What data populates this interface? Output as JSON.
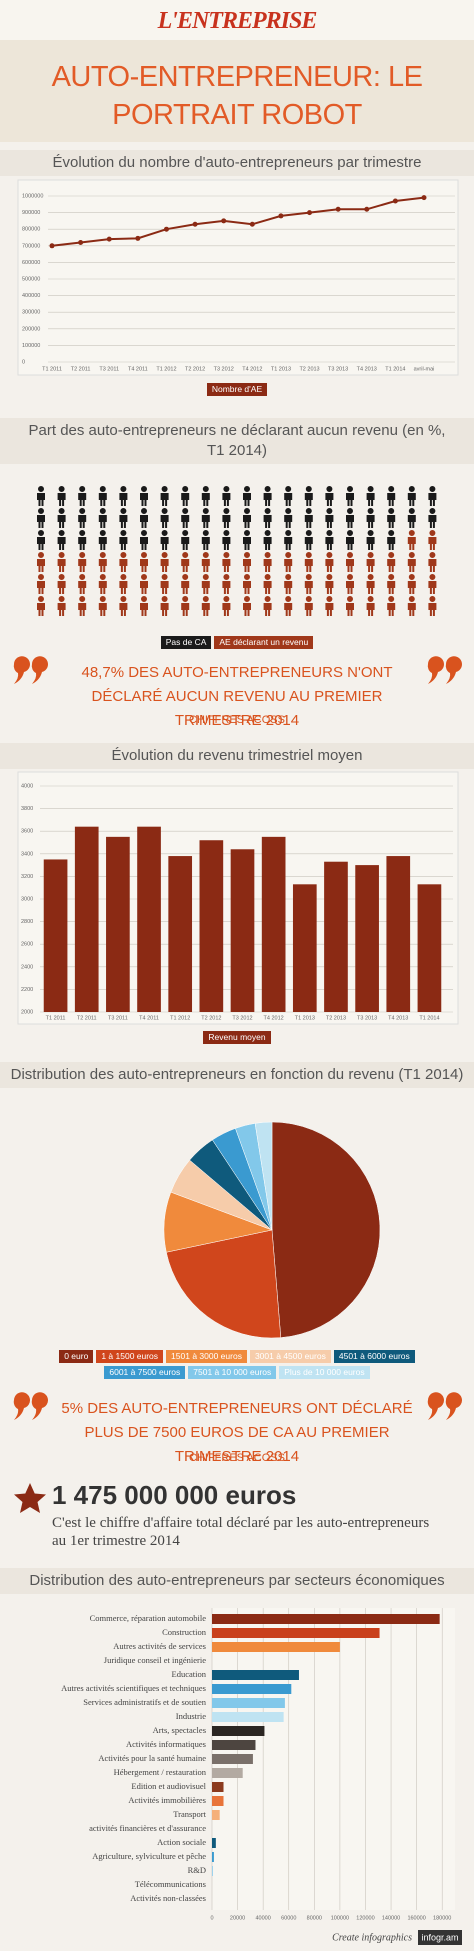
{
  "header": {
    "logo": "L'ENTREPRISE",
    "title": "AUTO-ENTREPRENEUR: LE PORTRAIT ROBOT"
  },
  "chart_data": [
    {
      "type": "line",
      "title": "Évolution du nombre d'auto-entrepreneurs par trimestre",
      "categories": [
        "T1 2011",
        "T2 2011",
        "T3 2011",
        "T4 2011",
        "T1 2012",
        "T2 2012",
        "T3 2012",
        "T4 2012",
        "T1 2013",
        "T2 2013",
        "T3 2013",
        "T4 2013",
        "T1 2014",
        "avril-mai"
      ],
      "series": [
        {
          "name": "Nombre d'AE",
          "color": "#8b2a14",
          "values": [
            700000,
            720000,
            740000,
            745000,
            800000,
            830000,
            850000,
            830000,
            880000,
            900000,
            920000,
            920000,
            970000,
            990000
          ]
        }
      ],
      "ylim": [
        0,
        1000000
      ],
      "yticks": [
        0,
        100000,
        200000,
        300000,
        400000,
        500000,
        600000,
        700000,
        800000,
        900000,
        1000000
      ],
      "grid": true
    },
    {
      "type": "pictogram",
      "title": "Part des auto-entrepreneurs ne déclarant aucun revenu (en %, T1 2014)",
      "series": [
        {
          "name": "Pas de CA",
          "color": "#1a1a1a",
          "values": [
            48.7
          ]
        },
        {
          "name": "AE déclarant un revenu",
          "color": "#a0381a",
          "values": [
            51.3
          ]
        }
      ]
    },
    {
      "type": "bar",
      "title": "Évolution du revenu trimestriel moyen",
      "categories": [
        "T1 2011",
        "T2 2011",
        "T3 2011",
        "T4 2011",
        "T1 2012",
        "T2 2012",
        "T3 2012",
        "T4 2012",
        "T1 2013",
        "T2 2013",
        "T3 2013",
        "T4 2013",
        "T1 2014"
      ],
      "series": [
        {
          "name": "Revenu moyen",
          "color": "#8b2a14",
          "values": [
            3350,
            3640,
            3550,
            3640,
            3380,
            3520,
            3440,
            3550,
            3130,
            3330,
            3300,
            3380,
            3130
          ]
        }
      ],
      "ylim": [
        2000,
        4000
      ],
      "yticks": [
        2000,
        2200,
        2400,
        2600,
        2800,
        3000,
        3200,
        3400,
        3600,
        3800,
        4000
      ],
      "grid": true
    },
    {
      "type": "pie",
      "title": "Distribution des auto-entrepreneurs en fonction du revenu (T1 2014)",
      "categories": [
        "0 euro",
        "1 à 1500 euros",
        "1501 à 3000 euros",
        "3001 à 4500 euros",
        "4501 à 6000 euros",
        "6001 à 7500 euros",
        "7501 à 10 000 euros",
        "Plus de 10 000 euros"
      ],
      "values": [
        48.7,
        23,
        9,
        5.5,
        4.5,
        3.8,
        3,
        2.5
      ],
      "colors": [
        "#8b2a14",
        "#d0461c",
        "#f08a3c",
        "#f6ccaa",
        "#0f5a7c",
        "#3a9ad0",
        "#82c8ea",
        "#bfe3f2"
      ]
    },
    {
      "type": "hbar",
      "title": "Distribution des auto-entrepreneurs par secteurs économiques",
      "categories": [
        "Commerce, réparation automobile",
        "Construction",
        "Autres activités de services",
        "Juridique conseil et ingénierie",
        "Education",
        "Autres activités scientifiques et techniques",
        "Services administratifs et de soutien",
        "Industrie",
        "Arts, spectacles",
        "Activités informatiques",
        "Activités pour la santé humaine",
        "Hébergement / restauration",
        "Edition et audiovisuel",
        "Activités immobilières",
        "Transport",
        "activités financières et d'assurance",
        "Action sociale",
        "Agriculture, sylviculture et pêche",
        "R&D",
        "Télécommunications",
        "Activités non-classées"
      ],
      "values": [
        178000,
        131000,
        100000,
        0,
        68000,
        62000,
        57000,
        56000,
        41000,
        34000,
        32000,
        24000,
        9000,
        9000,
        6000,
        0,
        3000,
        1500,
        600,
        0,
        0
      ],
      "colors": [
        "#8b2a14",
        "#c9401c",
        "#f08a3c",
        "#cccccc",
        "#0f5a7c",
        "#3a9ad0",
        "#82c8ea",
        "#bfe3f2",
        "#2b2622",
        "#4d4540",
        "#7a706a",
        "#b3aaa2",
        "#8b3a1e",
        "#e8743a",
        "#f5b07a",
        "#dddddd",
        "#0f5a7c",
        "#3a9ad0",
        "#82c8ea",
        "#bfe3f2",
        "#cccccc"
      ],
      "xlim": [
        0,
        190000
      ],
      "xticks": [
        0,
        20000,
        40000,
        60000,
        80000,
        100000,
        120000,
        140000,
        160000,
        180000
      ],
      "grid": true
    }
  ],
  "quotes": [
    {
      "text": "48,7% DES AUTO-ENTREPRENEURS N'ONT DÉCLARÉ AUCUN REVENU AU PREMIER TRIMESTRE 2014",
      "source": "CHIFFRES ACOSS"
    },
    {
      "text": "5% DES AUTO-ENTREPRENEURS ONT DÉCLARÉ PLUS DE 7500 EUROS DE CA AU PREMIER TRIMESTRE 2014",
      "source": "CHIFFRES ACOSS"
    }
  ],
  "highlight": {
    "figure": "1 475 000 000 euros",
    "text": "C'est le chiffre d'affaire total déclaré par les auto-entrepreneurs au 1er trimestre 2014"
  },
  "footer": {
    "text": "Create infographics",
    "brand": "infogr.am"
  }
}
